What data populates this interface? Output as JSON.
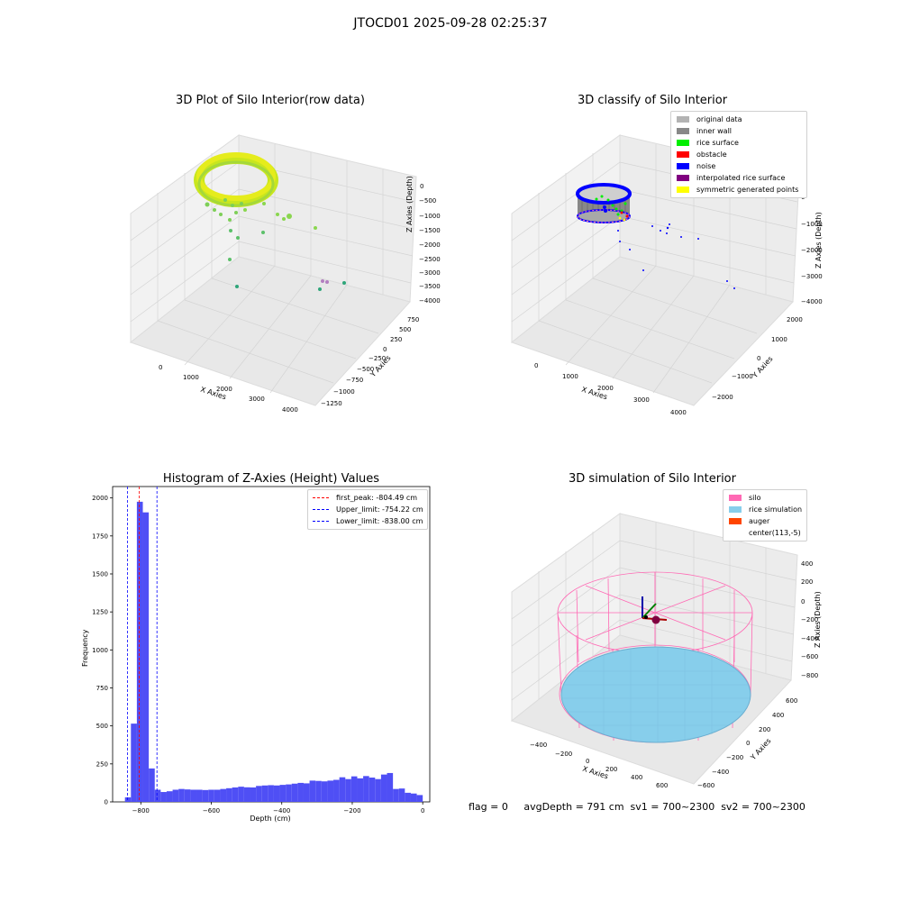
{
  "figure_title": "JTOCD01 2025-09-28 02:25:37",
  "status_line": "flag = 0     avgDepth = 791 cm  sv1 = 700~2300  sv2 = 700~2300",
  "colors": {
    "green_yellow": "#c8e61e",
    "original": "#b3b3b3",
    "inner_wall": "#888888",
    "rice_surface": "#00ee00",
    "obstacle": "#ff0000",
    "noise": "#0000ff",
    "interpolated": "#800080",
    "symmetric": "#ffff00",
    "silo": "#ff69b4",
    "rice_sim": "#87ceeb",
    "auger": "#ff4500",
    "hist_bar": "#4f4ff5",
    "first_peak_line": "#ff0000",
    "limit_line": "#0000ff"
  },
  "chart_data": [
    {
      "type": "scatter",
      "title": "3D Plot of Silo Interior(row data)",
      "xlabel": "X Axies",
      "ylabel": "Y Axies",
      "zlabel": "Z Axies (Depth)",
      "x_ticks": [
        "0",
        "1000",
        "2000",
        "3000",
        "4000"
      ],
      "y_ticks": [
        "750",
        "500",
        "250",
        "0",
        "−250",
        "−500",
        "−750",
        "−1000",
        "−1250"
      ],
      "z_ticks": [
        "0",
        "−500",
        "−1000",
        "−1500",
        "−2000",
        "−2500",
        "−3000",
        "−3500",
        "−4000"
      ],
      "colormap": "viridis-yellow"
    },
    {
      "type": "scatter",
      "title": "3D classify of Silo Interior",
      "xlabel": "X Axies",
      "ylabel": "Y Axies",
      "zlabel": "Z Axies (Depth)",
      "x_ticks": [
        "0",
        "1000",
        "2000",
        "3000",
        "4000"
      ],
      "y_ticks": [
        "2000",
        "1000",
        "0",
        "−1000",
        "−2000"
      ],
      "z_ticks": [
        "0",
        "−1000",
        "−2000",
        "−3000",
        "−4000"
      ],
      "legend_position": "top-right",
      "legend": [
        {
          "label": "original data",
          "color": "#b3b3b3"
        },
        {
          "label": "inner wall",
          "color": "#888888"
        },
        {
          "label": "rice surface",
          "color": "#00ee00"
        },
        {
          "label": "obstacle",
          "color": "#ff0000"
        },
        {
          "label": "noise",
          "color": "#0000ff"
        },
        {
          "label": "interpolated rice surface",
          "color": "#800080"
        },
        {
          "label": "symmetric generated points",
          "color": "#ffff00"
        }
      ]
    },
    {
      "type": "bar",
      "title": "Histogram of Z-Axies (Height) Values",
      "xlabel": "Depth (cm)",
      "ylabel": "Frequency",
      "xlim": [
        -880,
        20
      ],
      "ylim": [
        0,
        2075
      ],
      "x_ticks": [
        -800,
        -600,
        -400,
        -200,
        0
      ],
      "x_tick_labels": [
        "−800",
        "−600",
        "−400",
        "−200",
        "0"
      ],
      "y_ticks": [
        0,
        250,
        500,
        750,
        1000,
        1250,
        1500,
        1750,
        2000
      ],
      "bin_width": 16.9,
      "bin_start": -845,
      "values": [
        30,
        515,
        1975,
        1905,
        220,
        80,
        65,
        70,
        80,
        85,
        82,
        80,
        80,
        78,
        80,
        80,
        85,
        90,
        95,
        100,
        96,
        95,
        105,
        108,
        110,
        108,
        112,
        115,
        120,
        125,
        122,
        140,
        138,
        135,
        140,
        145,
        162,
        150,
        168,
        155,
        170,
        160,
        150,
        180,
        190,
        85,
        88,
        60,
        55,
        45
      ],
      "vlines": [
        {
          "label": "first_peak: -804.49 cm",
          "x": -804.49,
          "color": "#ff0000"
        },
        {
          "label": "Upper_limit: -754.22 cm",
          "x": -754.22,
          "color": "#0000ff"
        },
        {
          "label": "Lower_limit: -838.00 cm",
          "x": -838.0,
          "color": "#0000ff"
        }
      ],
      "legend_position": "top-right"
    },
    {
      "type": "scatter",
      "title": "3D simulation of Silo Interior",
      "xlabel": "X Axies",
      "ylabel": "Y Axies",
      "zlabel": "Z Axies (Depth)",
      "x_ticks": [
        "−400",
        "−200",
        "0",
        "200",
        "400",
        "600"
      ],
      "y_ticks": [
        "600",
        "400",
        "200",
        "0",
        "−200",
        "−400",
        "−600"
      ],
      "z_ticks": [
        "400",
        "200",
        "0",
        "−200",
        "−400",
        "−600",
        "−800"
      ],
      "legend_position": "top-right",
      "legend": [
        {
          "label": "silo",
          "color": "#ff69b4"
        },
        {
          "label": "rice simulation",
          "color": "#87ceeb"
        },
        {
          "label": "auger",
          "color": "#ff4500"
        },
        {
          "label": "center(113,-5)",
          "color": ""
        }
      ]
    }
  ]
}
